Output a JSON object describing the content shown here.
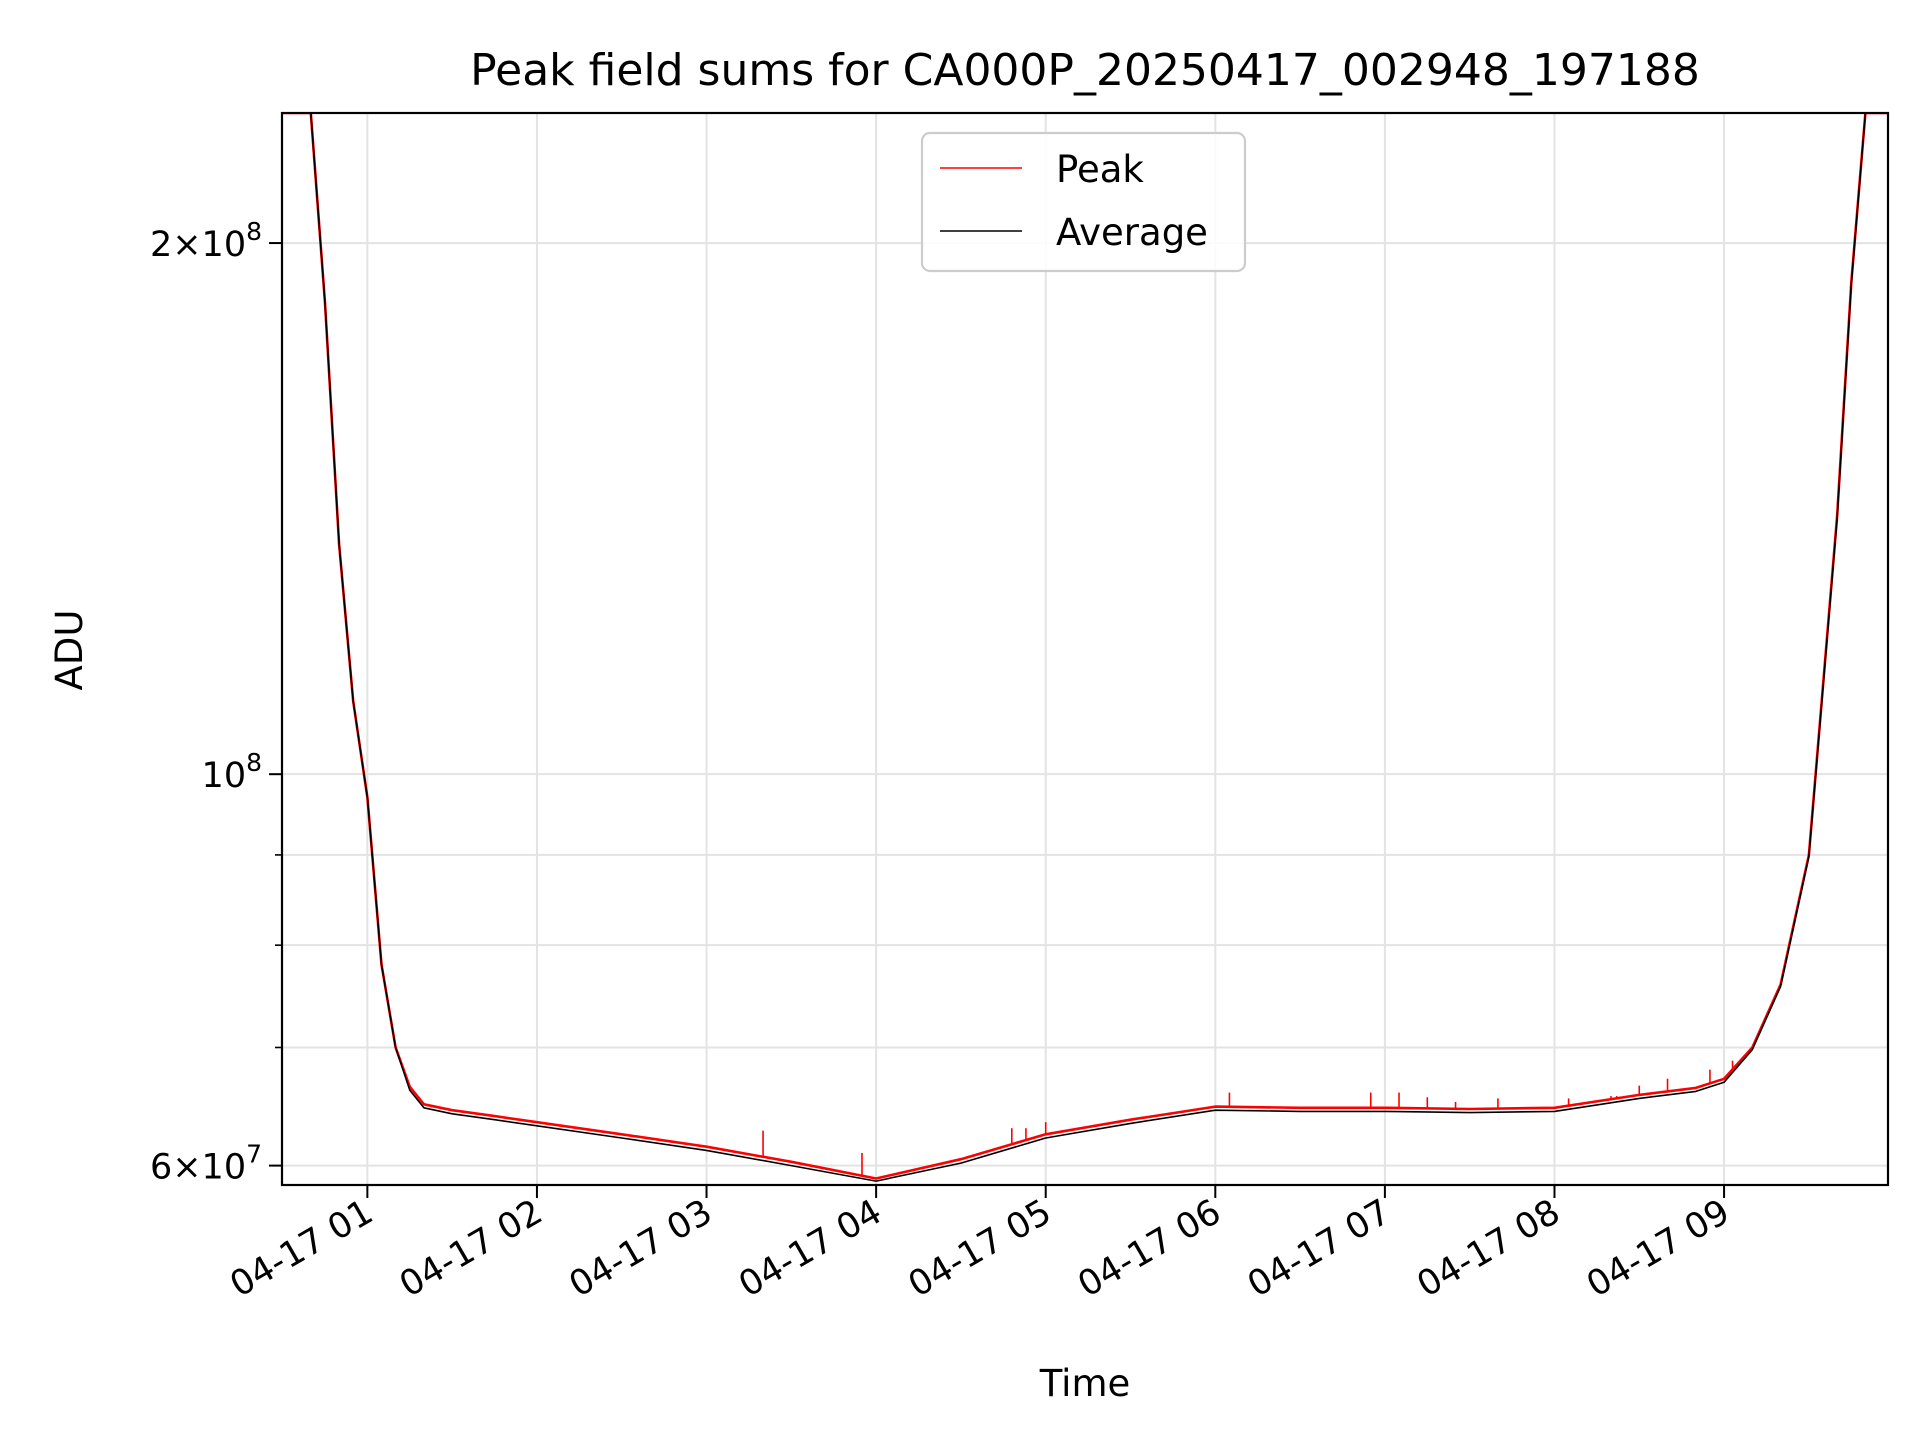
{
  "chart_data": {
    "type": "line",
    "title": "Peak field sums for CA000P_20250417_002948_197188",
    "xlabel": "Time",
    "ylabel": "ADU",
    "yscale": "log",
    "ylim": [
      58500000,
      237000000
    ],
    "xlim": [
      "2025-04-17 00:29:48",
      "2025-04-17 09:58:00"
    ],
    "grid": true,
    "legend_position": "upper-center",
    "x_ticks": [
      {
        "x": "2025-04-17 01:00",
        "label": "04-17 01"
      },
      {
        "x": "2025-04-17 02:00",
        "label": "04-17 02"
      },
      {
        "x": "2025-04-17 03:00",
        "label": "04-17 03"
      },
      {
        "x": "2025-04-17 04:00",
        "label": "04-17 04"
      },
      {
        "x": "2025-04-17 05:00",
        "label": "04-17 05"
      },
      {
        "x": "2025-04-17 06:00",
        "label": "04-17 06"
      },
      {
        "x": "2025-04-17 07:00",
        "label": "04-17 07"
      },
      {
        "x": "2025-04-17 08:00",
        "label": "04-17 08"
      },
      {
        "x": "2025-04-17 09:00",
        "label": "04-17 09"
      }
    ],
    "y_ticks": [
      {
        "value": 60000000,
        "base": "6×10",
        "exp": "7"
      },
      {
        "value": 100000000,
        "base": "10",
        "exp": "8"
      },
      {
        "value": 200000000,
        "base": "2×10",
        "exp": "8"
      }
    ],
    "y_minor_ticks": [
      70000000,
      80000000,
      90000000
    ],
    "series": [
      {
        "name": "Peak",
        "color": "#ff0000",
        "x": [
          "2025-04-17 00:29:48",
          "2025-04-17 00:40",
          "2025-04-17 00:45",
          "2025-04-17 00:50",
          "2025-04-17 00:55",
          "2025-04-17 01:00",
          "2025-04-17 01:05",
          "2025-04-17 01:10",
          "2025-04-17 01:15",
          "2025-04-17 01:20",
          "2025-04-17 01:30",
          "2025-04-17 01:45",
          "2025-04-17 02:00",
          "2025-04-17 02:30",
          "2025-04-17 03:00",
          "2025-04-17 03:30",
          "2025-04-17 04:00",
          "2025-04-17 04:30",
          "2025-04-17 05:00",
          "2025-04-17 05:30",
          "2025-04-17 06:00",
          "2025-04-17 06:30",
          "2025-04-17 07:00",
          "2025-04-17 07:30",
          "2025-04-17 08:00",
          "2025-04-17 08:30",
          "2025-04-17 08:50",
          "2025-04-17 09:00",
          "2025-04-17 09:10",
          "2025-04-17 09:20",
          "2025-04-17 09:30",
          "2025-04-17 09:40",
          "2025-04-17 09:45",
          "2025-04-17 09:50",
          "2025-04-17 09:58"
        ],
        "values": [
          237000000,
          237000000,
          185000000,
          135000000,
          110000000,
          97000000,
          78000000,
          70000000,
          66500000,
          65000000,
          64500000,
          64000000,
          63500000,
          62500000,
          61500000,
          60300000,
          59000000,
          60500000,
          62500000,
          63700000,
          64800000,
          64700000,
          64700000,
          64600000,
          64700000,
          65800000,
          66400000,
          67200000,
          70000000,
          76000000,
          90000000,
          140000000,
          190000000,
          237000000,
          237000000
        ]
      },
      {
        "name": "Average",
        "color": "#000000",
        "x": [
          "2025-04-17 00:29:48",
          "2025-04-17 00:40",
          "2025-04-17 00:45",
          "2025-04-17 00:50",
          "2025-04-17 00:55",
          "2025-04-17 01:00",
          "2025-04-17 01:05",
          "2025-04-17 01:10",
          "2025-04-17 01:15",
          "2025-04-17 01:20",
          "2025-04-17 01:30",
          "2025-04-17 01:45",
          "2025-04-17 02:00",
          "2025-04-17 02:30",
          "2025-04-17 03:00",
          "2025-04-17 03:30",
          "2025-04-17 04:00",
          "2025-04-17 04:30",
          "2025-04-17 05:00",
          "2025-04-17 05:30",
          "2025-04-17 06:00",
          "2025-04-17 06:30",
          "2025-04-17 07:00",
          "2025-04-17 07:30",
          "2025-04-17 08:00",
          "2025-04-17 08:30",
          "2025-04-17 08:50",
          "2025-04-17 09:00",
          "2025-04-17 09:10",
          "2025-04-17 09:20",
          "2025-04-17 09:30",
          "2025-04-17 09:40",
          "2025-04-17 09:45",
          "2025-04-17 09:50",
          "2025-04-17 09:58"
        ],
        "values": [
          237000000,
          237000000,
          185000000,
          135000000,
          110000000,
          97000000,
          78000000,
          70000000,
          66200000,
          64700000,
          64200000,
          63700000,
          63200000,
          62200000,
          61200000,
          60000000,
          58800000,
          60200000,
          62200000,
          63400000,
          64500000,
          64400000,
          64400000,
          64300000,
          64400000,
          65500000,
          66100000,
          66900000,
          69800000,
          75800000,
          89800000,
          139500000,
          189500000,
          237000000,
          237000000
        ]
      }
    ],
    "spikes": {
      "series": "Peak",
      "x": [
        "2025-04-17 03:20",
        "2025-04-17 03:55",
        "2025-04-17 04:48",
        "2025-04-17 04:53",
        "2025-04-17 05:00",
        "2025-04-17 06:05",
        "2025-04-17 06:55",
        "2025-04-17 07:05",
        "2025-04-17 07:15",
        "2025-04-17 07:25",
        "2025-04-17 07:40",
        "2025-04-17 08:05",
        "2025-04-17 08:20",
        "2025-04-17 08:22",
        "2025-04-17 08:30",
        "2025-04-17 08:40",
        "2025-04-17 08:55",
        "2025-04-17 09:03"
      ],
      "values": [
        62800000,
        61000000,
        63000000,
        63000000,
        63500000,
        66000000,
        66000000,
        66000000,
        65600000,
        65200000,
        65500000,
        65500000,
        65700000,
        65700000,
        66600000,
        67200000,
        68000000,
        68800000
      ]
    }
  }
}
